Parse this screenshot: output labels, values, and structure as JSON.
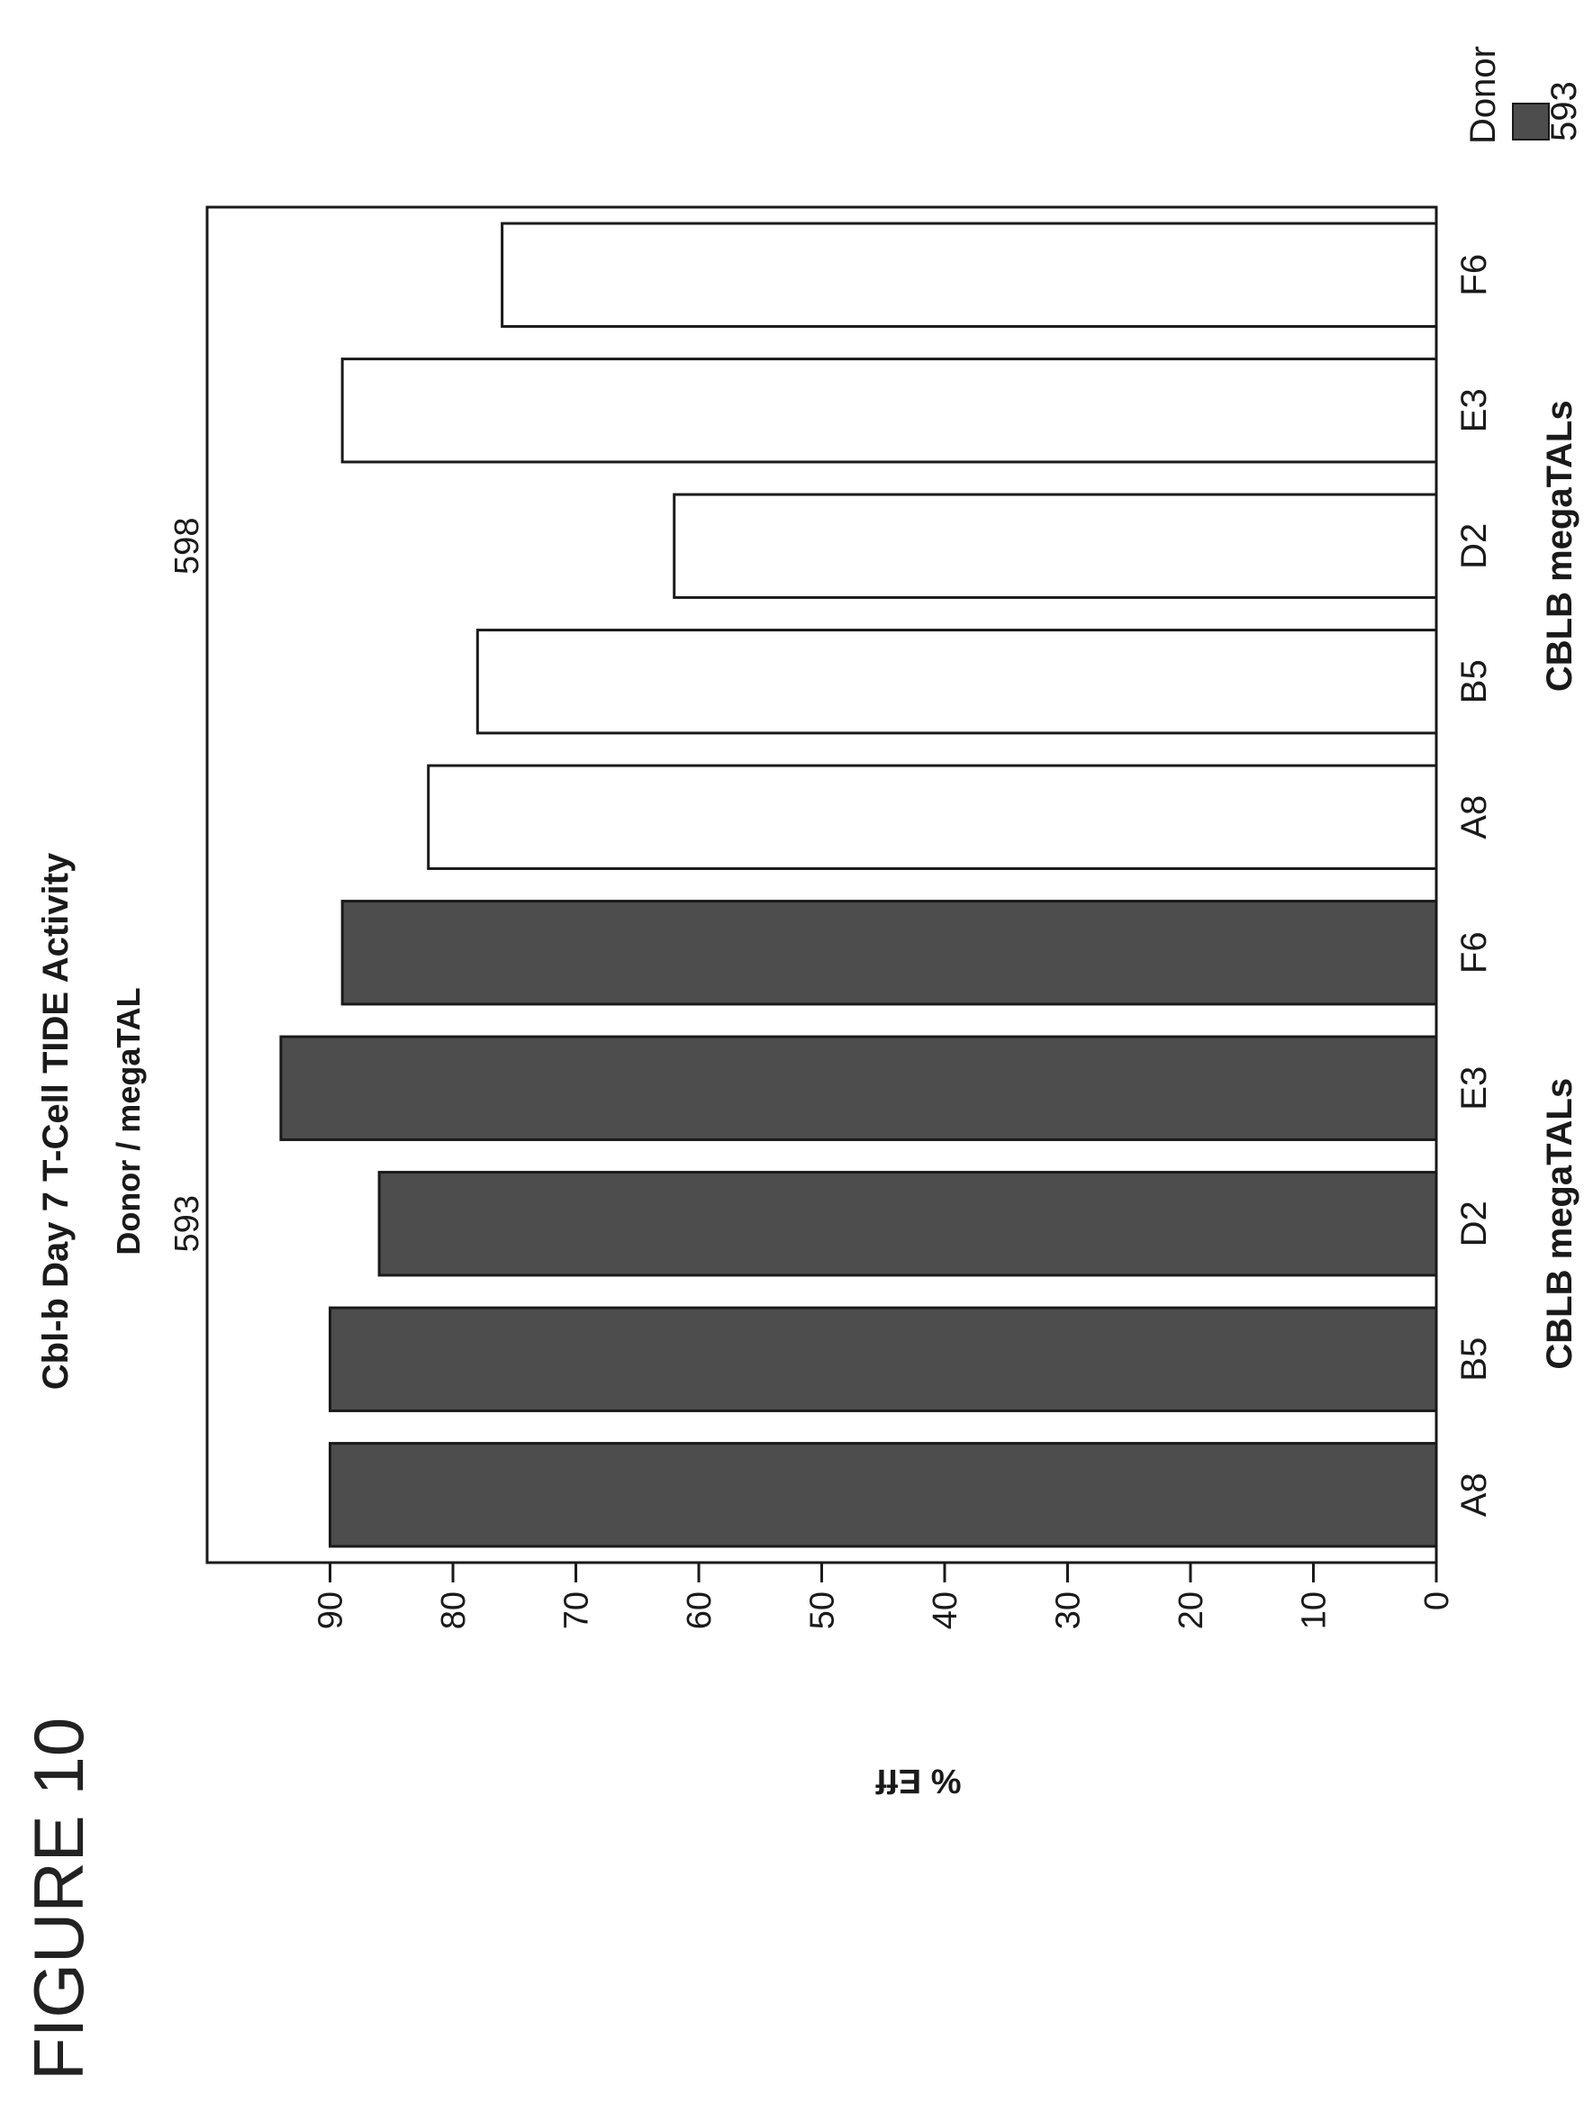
{
  "figure_label": "FIGURE 10",
  "chart_data": {
    "type": "bar",
    "title": "Cbl-b Day 7 T-Cell TIDE Activity",
    "subtitle": "Donor / megaTAL",
    "ylabel": "% Eff",
    "ylim": [
      0,
      100
    ],
    "yticks": [
      0,
      10,
      20,
      30,
      40,
      50,
      60,
      70,
      80,
      90
    ],
    "xlabel": "CBLB megaTALs",
    "legend": {
      "title": "Donor",
      "position": "top-right",
      "entries": [
        "593",
        "598"
      ]
    },
    "colors": {
      "593": "#4d4d4d",
      "598": "#ffffff"
    },
    "groups": [
      {
        "name": "593",
        "categories": [
          "A8",
          "B5",
          "D2",
          "E3",
          "F6"
        ],
        "values": [
          90,
          90,
          86,
          94,
          89
        ]
      },
      {
        "name": "598",
        "categories": [
          "A8",
          "B5",
          "D2",
          "E3",
          "F6"
        ],
        "values": [
          82,
          78,
          62,
          89,
          76
        ]
      }
    ]
  }
}
